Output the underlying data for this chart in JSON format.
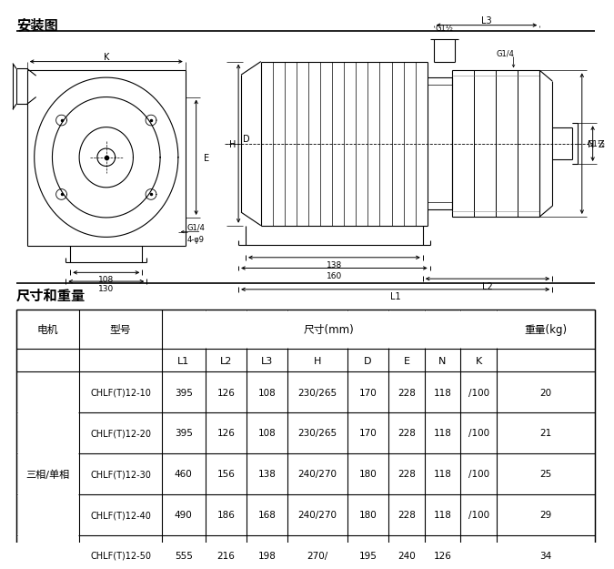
{
  "title_install": "安装图",
  "title_dims": "尺寸和重量",
  "col_motor": "电机",
  "col_model": "型号",
  "col_dim_header": "尺寸(mm)",
  "col_weight": "重量(kg)",
  "col_sub": [
    "L1",
    "L2",
    "L3",
    "H",
    "D",
    "E",
    "N",
    "K"
  ],
  "motor_label": "三相/单相",
  "table_data": [
    [
      "CHLF(T)12-10",
      "395",
      "126",
      "108",
      "230/265",
      "170",
      "228",
      "118",
      "/100",
      "20"
    ],
    [
      "CHLF(T)12-20",
      "395",
      "126",
      "108",
      "230/265",
      "170",
      "228",
      "118",
      "/100",
      "21"
    ],
    [
      "CHLF(T)12-30",
      "460",
      "156",
      "138",
      "240/270",
      "180",
      "228",
      "118",
      "/100",
      "25"
    ],
    [
      "CHLF(T)12-40",
      "490",
      "186",
      "168",
      "240/270",
      "180",
      "228",
      "118",
      "/100",
      "29"
    ],
    [
      "CHLF(T)12-50",
      "555",
      "216",
      "198",
      "270/",
      "195",
      "240",
      "126",
      "",
      "34"
    ]
  ],
  "label_k": "K",
  "label_108": "108",
  "label_130": "130",
  "label_e": "E",
  "label_d": "D",
  "label_h": "H",
  "label_g14": "G1/4",
  "label_g1h": "G1½",
  "label_g1h2": "G1/4",
  "label_g1h3": "G1½",
  "label_l3": "L3",
  "label_l2": "L2",
  "label_l1": "L1",
  "label_138": "138",
  "label_160": "160",
  "label_n": "N",
  "label_z": "Z",
  "label_4phi9": "4-φ9",
  "bg": "#ffffff",
  "lc": "#000000"
}
